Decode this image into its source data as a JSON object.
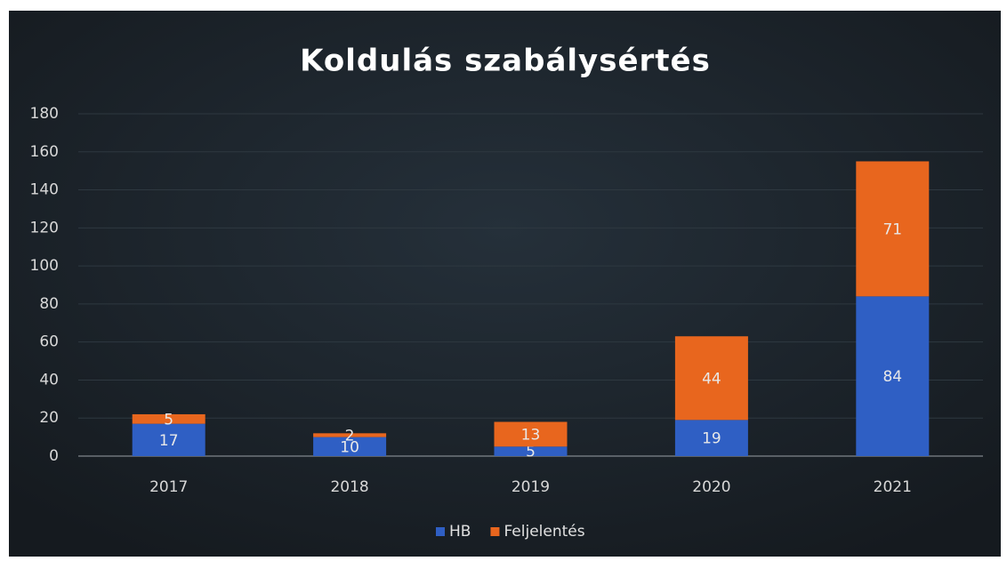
{
  "chart_data": {
    "type": "bar",
    "stacked": true,
    "title": "Koldulás szabálysértés",
    "categories": [
      "2017",
      "2018",
      "2019",
      "2020",
      "2021"
    ],
    "series": [
      {
        "name": "HB",
        "color": "#2f5fc4",
        "values": [
          17,
          10,
          5,
          19,
          84
        ]
      },
      {
        "name": "Feljelentés",
        "color": "#e8661e",
        "values": [
          5,
          2,
          13,
          44,
          71
        ]
      }
    ],
    "ylim": [
      0,
      180
    ],
    "yticks": [
      0,
      20,
      40,
      60,
      80,
      100,
      120,
      140,
      160,
      180
    ],
    "grid": true,
    "legend": "bottom"
  }
}
